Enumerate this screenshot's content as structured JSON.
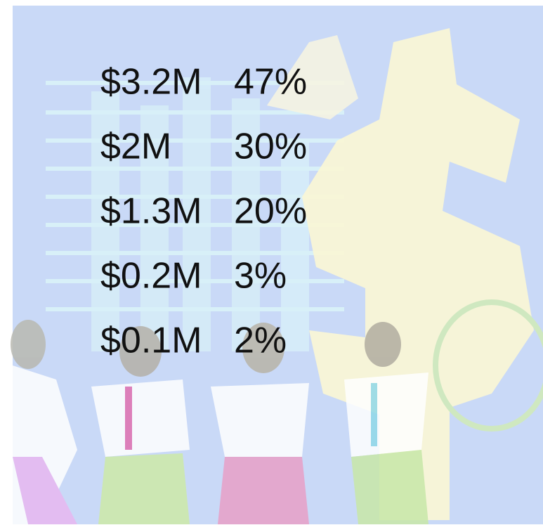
{
  "table": {
    "rows": [
      [
        "$3.2M",
        "47%"
      ],
      [
        "$2M",
        "30%"
      ],
      [
        "$1.3M",
        "20%"
      ],
      [
        "$0.2M",
        "3%"
      ],
      [
        "$0.1M",
        "2%"
      ]
    ]
  }
}
